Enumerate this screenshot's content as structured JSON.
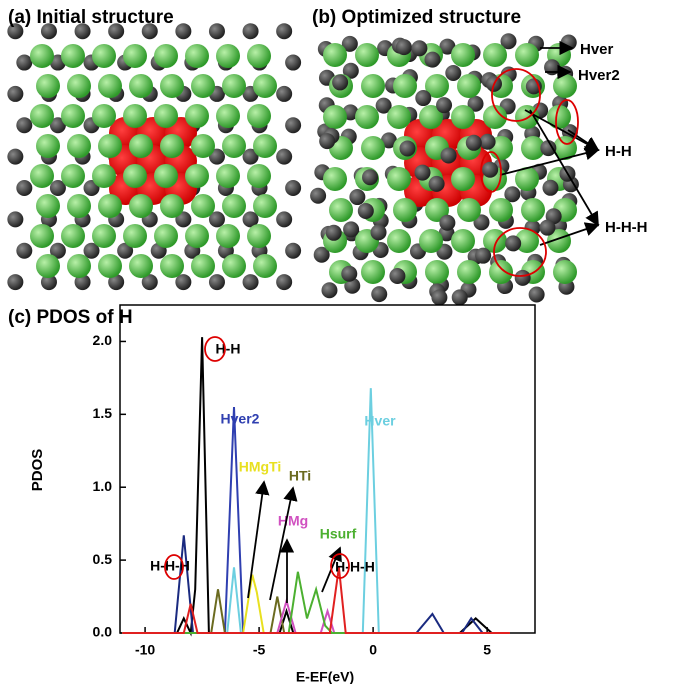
{
  "panels": {
    "a": "(a) Initial structure",
    "b": "(b) Optimized structure"
  },
  "structure_labels": [
    "Hver",
    "Hver2",
    "H-H",
    "H-H-H"
  ],
  "chart_data": {
    "type": "line",
    "title": "(c) PDOS of H",
    "x_label": "E-EF(eV)",
    "y_label": "PDOS",
    "xlim": [
      -11.1,
      7.1
    ],
    "ylim": [
      0,
      2.25
    ],
    "xticks": [
      -10,
      -5,
      0,
      5
    ],
    "yticks": [
      {
        "value": 0,
        "label": "0.0"
      },
      {
        "value": 0.5,
        "label": "0.5"
      },
      {
        "value": 1,
        "label": "1.0"
      },
      {
        "value": 1.5,
        "label": "1.5"
      },
      {
        "value": 2,
        "label": "2.0"
      }
    ],
    "series": [
      {
        "name": "H-H",
        "color": "#000000",
        "x": [
          -11,
          -8.6,
          -8.3,
          -8.0,
          -7.8,
          -7.5,
          -7.2,
          -4.1,
          -3.8,
          -3.5,
          3.8,
          4.5,
          5.2,
          6
        ],
        "values": [
          0,
          0,
          0.1,
          0,
          0.3,
          2.03,
          0,
          0,
          0.15,
          0,
          0,
          0.1,
          0,
          0
        ]
      },
      {
        "name": "H-H-H",
        "color": "#1a2a80",
        "x": [
          -11,
          -8.7,
          -8.3,
          -7.9,
          1.9,
          2.6,
          3.1,
          3.9,
          4.3,
          4.8,
          6
        ],
        "values": [
          0,
          0,
          0.67,
          0,
          0,
          0.13,
          0,
          0,
          0.1,
          0,
          0
        ]
      },
      {
        "name": "Hver2",
        "color": "#2f3fb0",
        "x": [
          -11,
          -6.5,
          -6.1,
          -5.7,
          6
        ],
        "values": [
          0,
          0,
          1.55,
          0,
          0
        ]
      },
      {
        "name": "Hver",
        "color": "#6ccfe0",
        "x": [
          -11,
          -6.4,
          -6.1,
          -5.8,
          -0.45,
          -0.1,
          0.25,
          6
        ],
        "values": [
          0,
          0,
          0.45,
          0,
          0,
          1.68,
          0,
          0
        ]
      },
      {
        "name": "HMgTi",
        "color": "#e8e020",
        "x": [
          -11,
          -5.7,
          -5.3,
          -5.1,
          -4.8,
          6
        ],
        "values": [
          0,
          0,
          0.4,
          0.28,
          0,
          0
        ]
      },
      {
        "name": "HTi",
        "color": "#6b6b20",
        "x": [
          -11,
          -7.1,
          -6.8,
          -6.5,
          -4.5,
          -4.2,
          -3.9,
          6
        ],
        "values": [
          0,
          0,
          0.3,
          0,
          0,
          0.25,
          0,
          0
        ]
      },
      {
        "name": "HMg",
        "color": "#d050c0",
        "x": [
          -11,
          -4.2,
          -3.8,
          -3.4,
          -2.3,
          -2.0,
          -1.7,
          6
        ],
        "values": [
          0,
          0,
          0.22,
          0,
          0,
          0.15,
          0,
          0
        ]
      },
      {
        "name": "Hsurf",
        "color": "#4cb030",
        "x": [
          -11,
          -3.7,
          -3.3,
          -2.9,
          -2.5,
          -2.1,
          -1.8,
          6
        ],
        "values": [
          0,
          0,
          0.42,
          0.1,
          0.3,
          0.05,
          0,
          0
        ]
      },
      {
        "name": "H-H-H",
        "color": "#e02020",
        "x": [
          -11,
          -8.3,
          -8.0,
          -7.7,
          -1.9,
          -1.5,
          -1.2,
          6
        ],
        "values": [
          0,
          0,
          0.2,
          0,
          0,
          0.45,
          0,
          0
        ]
      }
    ]
  }
}
